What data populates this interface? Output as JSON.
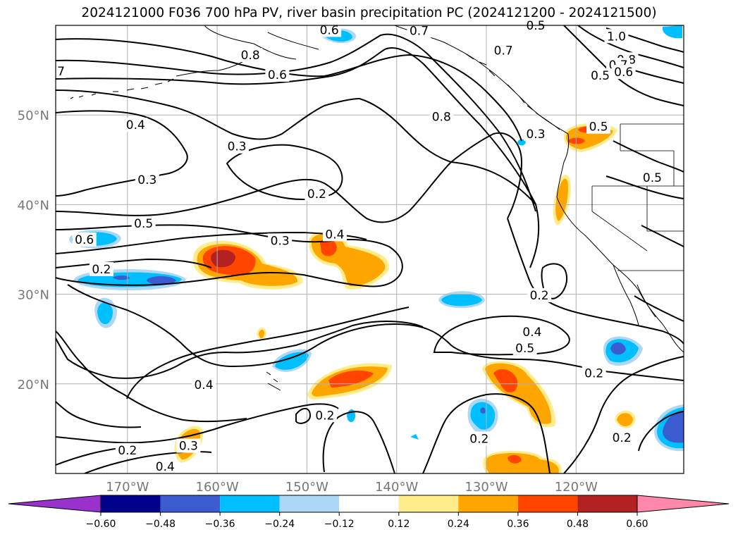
{
  "title": "2024121000 F036 700 hPa PV, river basin precipitation PC (2024121200 - 2024121500)",
  "map": {
    "lon_range": [
      -178,
      -108
    ],
    "lat_range": [
      10,
      60
    ],
    "lon_labels": [
      "170°W",
      "160°W",
      "150°W",
      "140°W",
      "130°W",
      "120°W"
    ],
    "lon_values": [
      -170,
      -160,
      -150,
      -140,
      -130,
      -120
    ],
    "lat_labels": [
      "20°N",
      "30°N",
      "40°N",
      "50°N"
    ],
    "lat_values": [
      20,
      30,
      40,
      50
    ],
    "contour_labels": [
      {
        "text": "0.6",
        "lon": -147.5,
        "lat": 59.5
      },
      {
        "text": "0.7",
        "lon": -137.5,
        "lat": 59.4
      },
      {
        "text": "0.5",
        "lon": -124.5,
        "lat": 60.0
      },
      {
        "text": "1.0",
        "lon": -115.5,
        "lat": 58.8
      },
      {
        "text": "0.8",
        "lon": -156.3,
        "lat": 56.7
      },
      {
        "text": "0.7",
        "lon": -128.1,
        "lat": 57.2
      },
      {
        "text": "0.8",
        "lon": -114.4,
        "lat": 56.2
      },
      {
        "text": "0.7",
        "lon": -115.3,
        "lat": 55.6
      },
      {
        "text": "0.6",
        "lon": -114.7,
        "lat": 54.8
      },
      {
        "text": "0.5",
        "lon": -117.3,
        "lat": 54.4
      },
      {
        "text": "7",
        "lon": -177.4,
        "lat": 54.9
      },
      {
        "text": "0.6",
        "lon": -153.3,
        "lat": 54.5
      },
      {
        "text": "0.4",
        "lon": -169.1,
        "lat": 48.9
      },
      {
        "text": "0.8",
        "lon": -135.0,
        "lat": 49.8
      },
      {
        "text": "0.3",
        "lon": -124.5,
        "lat": 47.9
      },
      {
        "text": "0.3",
        "lon": -157.8,
        "lat": 46.5
      },
      {
        "text": "0.5",
        "lon": -117.5,
        "lat": 48.7
      },
      {
        "text": "0.3",
        "lon": -167.8,
        "lat": 42.8
      },
      {
        "text": "0.2",
        "lon": -148.9,
        "lat": 41.2
      },
      {
        "text": "0.5",
        "lon": -111.5,
        "lat": 43.0
      },
      {
        "text": "0.5",
        "lon": -168.2,
        "lat": 37.9
      },
      {
        "text": "0.4",
        "lon": -146.9,
        "lat": 36.7
      },
      {
        "text": "0.3",
        "lon": -153.0,
        "lat": 36.0
      },
      {
        "text": "0.6",
        "lon": -174.8,
        "lat": 36.1
      },
      {
        "text": "0.2",
        "lon": -172.9,
        "lat": 32.8
      },
      {
        "text": "0.2",
        "lon": -124.1,
        "lat": 29.9
      },
      {
        "text": "0.4",
        "lon": -124.9,
        "lat": 25.8
      },
      {
        "text": "0.5",
        "lon": -125.7,
        "lat": 24.0
      },
      {
        "text": "0.2",
        "lon": -118.0,
        "lat": 21.2
      },
      {
        "text": "0.4",
        "lon": -161.5,
        "lat": 19.9
      },
      {
        "text": "0.2",
        "lon": -148.0,
        "lat": 16.5
      },
      {
        "text": "0.2",
        "lon": -130.8,
        "lat": 13.9
      },
      {
        "text": "0.2",
        "lon": -114.9,
        "lat": 14.0
      },
      {
        "text": "0.3",
        "lon": -163.2,
        "lat": 13.1
      },
      {
        "text": "0.2",
        "lon": -170.0,
        "lat": 12.6
      },
      {
        "text": "0.4",
        "lon": -165.8,
        "lat": 10.8
      }
    ]
  },
  "colorbar": {
    "colors": [
      "#9932cc",
      "#00008b",
      "#3b5cd0",
      "#00bfff",
      "#add8f5",
      "#ffffff",
      "#ffec8b",
      "#ffa500",
      "#ff4500",
      "#b22222",
      "#ff88aa"
    ],
    "ticks": [
      "−0.60",
      "−0.48",
      "−0.36",
      "−0.24",
      "−0.12",
      "0.12",
      "0.24",
      "0.36",
      "0.48",
      "0.60"
    ]
  },
  "colors": {
    "contour": "#000000",
    "coast": "#000000",
    "grid": "#b0b0b0",
    "axis_labels": "#777777"
  }
}
